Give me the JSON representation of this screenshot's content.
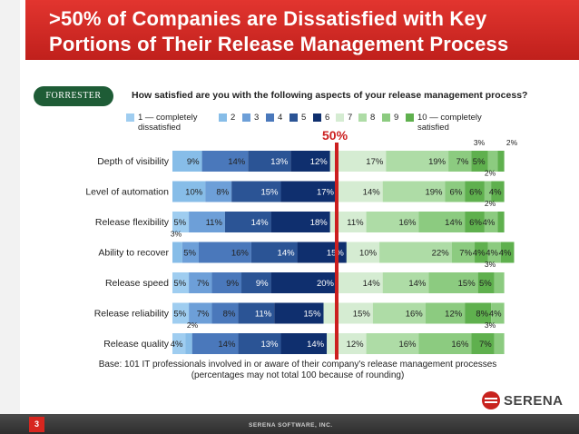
{
  "slide": {
    "title_line1": ">50% of Companies are Dissatisfied with Key",
    "title_line2": "Portions of Their Release Management Process",
    "logo_text": "FORRESTER",
    "page_number": "3",
    "footer_company": "SERENA SOFTWARE, INC.",
    "brand_logo_text": "SERENA",
    "base_line1": "Base: 101 IT professionals involved in or aware of their company's release management processes",
    "base_line2": "(percentages may not total 100 because of rounding)",
    "marker_label": "50%"
  },
  "colors": {
    "scale": [
      "#9fcdf0",
      "#87bde8",
      "#6d9fd8",
      "#4a78bb",
      "#2b5495",
      "#0f2f6e",
      "#d5ecd2",
      "#aedca6",
      "#8ccb80",
      "#5fb04e"
    ],
    "marker": "#cc1f1f"
  },
  "chart_data": {
    "type": "bar",
    "orientation": "horizontal-stacked",
    "title": "How satisfied are you with the following aspects of your release management process?",
    "legend": [
      {
        "key": "1",
        "label": "1 — completely",
        "label2": "dissatisfied"
      },
      {
        "key": "2",
        "label": "2",
        "label2": ""
      },
      {
        "key": "3",
        "label": "3",
        "label2": ""
      },
      {
        "key": "4",
        "label": "4",
        "label2": ""
      },
      {
        "key": "5",
        "label": "5",
        "label2": ""
      },
      {
        "key": "6",
        "label": "6",
        "label2": ""
      },
      {
        "key": "7",
        "label": "7",
        "label2": ""
      },
      {
        "key": "8",
        "label": "8",
        "label2": ""
      },
      {
        "key": "9",
        "label": "9",
        "label2": ""
      },
      {
        "key": "10",
        "label": "10 — completely",
        "label2": "satisfied"
      }
    ],
    "categories": [
      "Depth of visibility",
      "Level of automation",
      "Release flexibility",
      "Ability to recover",
      "Release speed",
      "Release reliability",
      "Release quality"
    ],
    "series": [
      {
        "name": "1 — completely dissatisfied",
        "values": [
          0,
          0,
          5,
          0,
          5,
          5,
          4
        ]
      },
      {
        "name": "2",
        "values": [
          9,
          10,
          0,
          3,
          0,
          0,
          2
        ]
      },
      {
        "name": "3",
        "values": [
          0,
          8,
          11,
          5,
          7,
          7,
          0
        ]
      },
      {
        "name": "4",
        "values": [
          14,
          0,
          0,
          16,
          9,
          8,
          14
        ]
      },
      {
        "name": "5",
        "values": [
          13,
          15,
          14,
          14,
          9,
          11,
          13
        ]
      },
      {
        "name": "6",
        "values": [
          12,
          17,
          18,
          15,
          20,
          15,
          14
        ]
      },
      {
        "name": "7",
        "values": [
          17,
          14,
          11,
          10,
          14,
          15,
          12
        ]
      },
      {
        "name": "8",
        "values": [
          19,
          19,
          16,
          22,
          14,
          16,
          16
        ]
      },
      {
        "name": "9",
        "values": [
          7,
          6,
          14,
          7,
          15,
          12,
          16
        ]
      },
      {
        "name": "10 — completely satisfied",
        "values": [
          5,
          6,
          6,
          4,
          5,
          8,
          7
        ]
      },
      {
        "name": "extra-1",
        "values": [
          3,
          2,
          4,
          4,
          3,
          4,
          3
        ]
      },
      {
        "name": "extra-2",
        "values": [
          2,
          4,
          2,
          4,
          0,
          0,
          0
        ]
      }
    ],
    "segment_labels": [
      [
        "",
        "9%",
        "",
        "14%",
        "13%",
        "12%",
        "17%",
        "19%",
        "7%",
        "5%",
        "3%",
        "2%"
      ],
      [
        "",
        "10%",
        "8%",
        "",
        "15%",
        "17%",
        "14%",
        "19%",
        "6%",
        "6%",
        "2%",
        "4%"
      ],
      [
        "5%",
        "",
        "11%",
        "",
        "14%",
        "18%",
        "11%",
        "16%",
        "14%",
        "6%",
        "4%",
        "2%"
      ],
      [
        "",
        "3%",
        "5%",
        "16%",
        "14%",
        "15%",
        "10%",
        "22%",
        "7%",
        "4%",
        "4%",
        "4%"
      ],
      [
        "5%",
        "",
        "7%",
        "9%",
        "9%",
        "20%",
        "14%",
        "14%",
        "15%",
        "5%",
        "3%",
        ""
      ],
      [
        "5%",
        "",
        "7%",
        "8%",
        "11%",
        "15%",
        "15%",
        "16%",
        "12%",
        "8%",
        "4%",
        ""
      ],
      [
        "4%",
        "2%",
        "",
        "14%",
        "13%",
        "14%",
        "12%",
        "16%",
        "16%",
        "7%",
        "3%",
        ""
      ]
    ],
    "xlim": [
      0,
      100
    ],
    "marker_value": 50
  }
}
